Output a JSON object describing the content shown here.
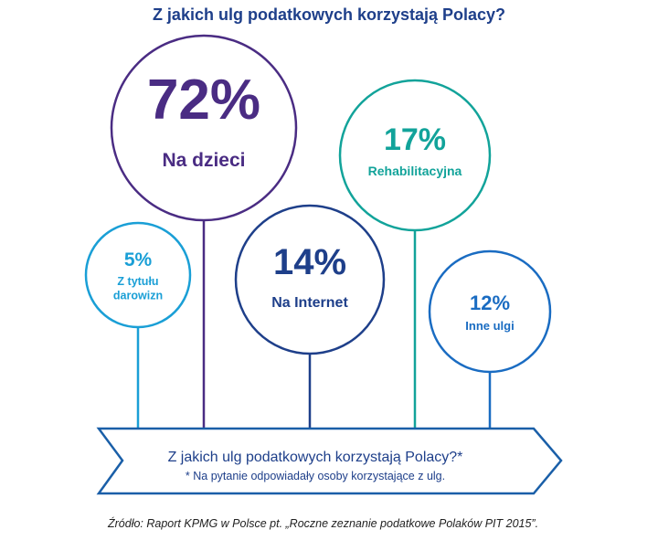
{
  "title": "Z jakich ulg podatkowych korzystają Polacy?",
  "chart_data": {
    "type": "bubble",
    "title": "Z jakich ulg podatkowych korzystają Polacy?",
    "items": [
      {
        "label": "Na dzieci",
        "value": 72,
        "value_text": "72%",
        "color": "#4a2c83"
      },
      {
        "label": "Rehabilitacyjna",
        "value": 17,
        "value_text": "17%",
        "color": "#12a39a"
      },
      {
        "label": "Z tytułu darowizn",
        "value": 5,
        "value_text": "5%",
        "color": "#1a9fd6"
      },
      {
        "label": "Na Internet",
        "value": 14,
        "value_text": "14%",
        "color": "#1e3f8a"
      },
      {
        "label": "Inne ulgi",
        "value": 12,
        "value_text": "12%",
        "color": "#1a6cc2"
      }
    ]
  },
  "arrow": {
    "title": "Z jakich ulg podatkowych korzystają Polacy?*",
    "note": "* Na pytanie odpowiadały osoby korzystające z ulg.",
    "color": "#1a5fa8"
  },
  "source": "Źródło: Raport KPMG w Polsce pt. „Roczne zeznanie podatkowe Polaków PIT 2015”."
}
